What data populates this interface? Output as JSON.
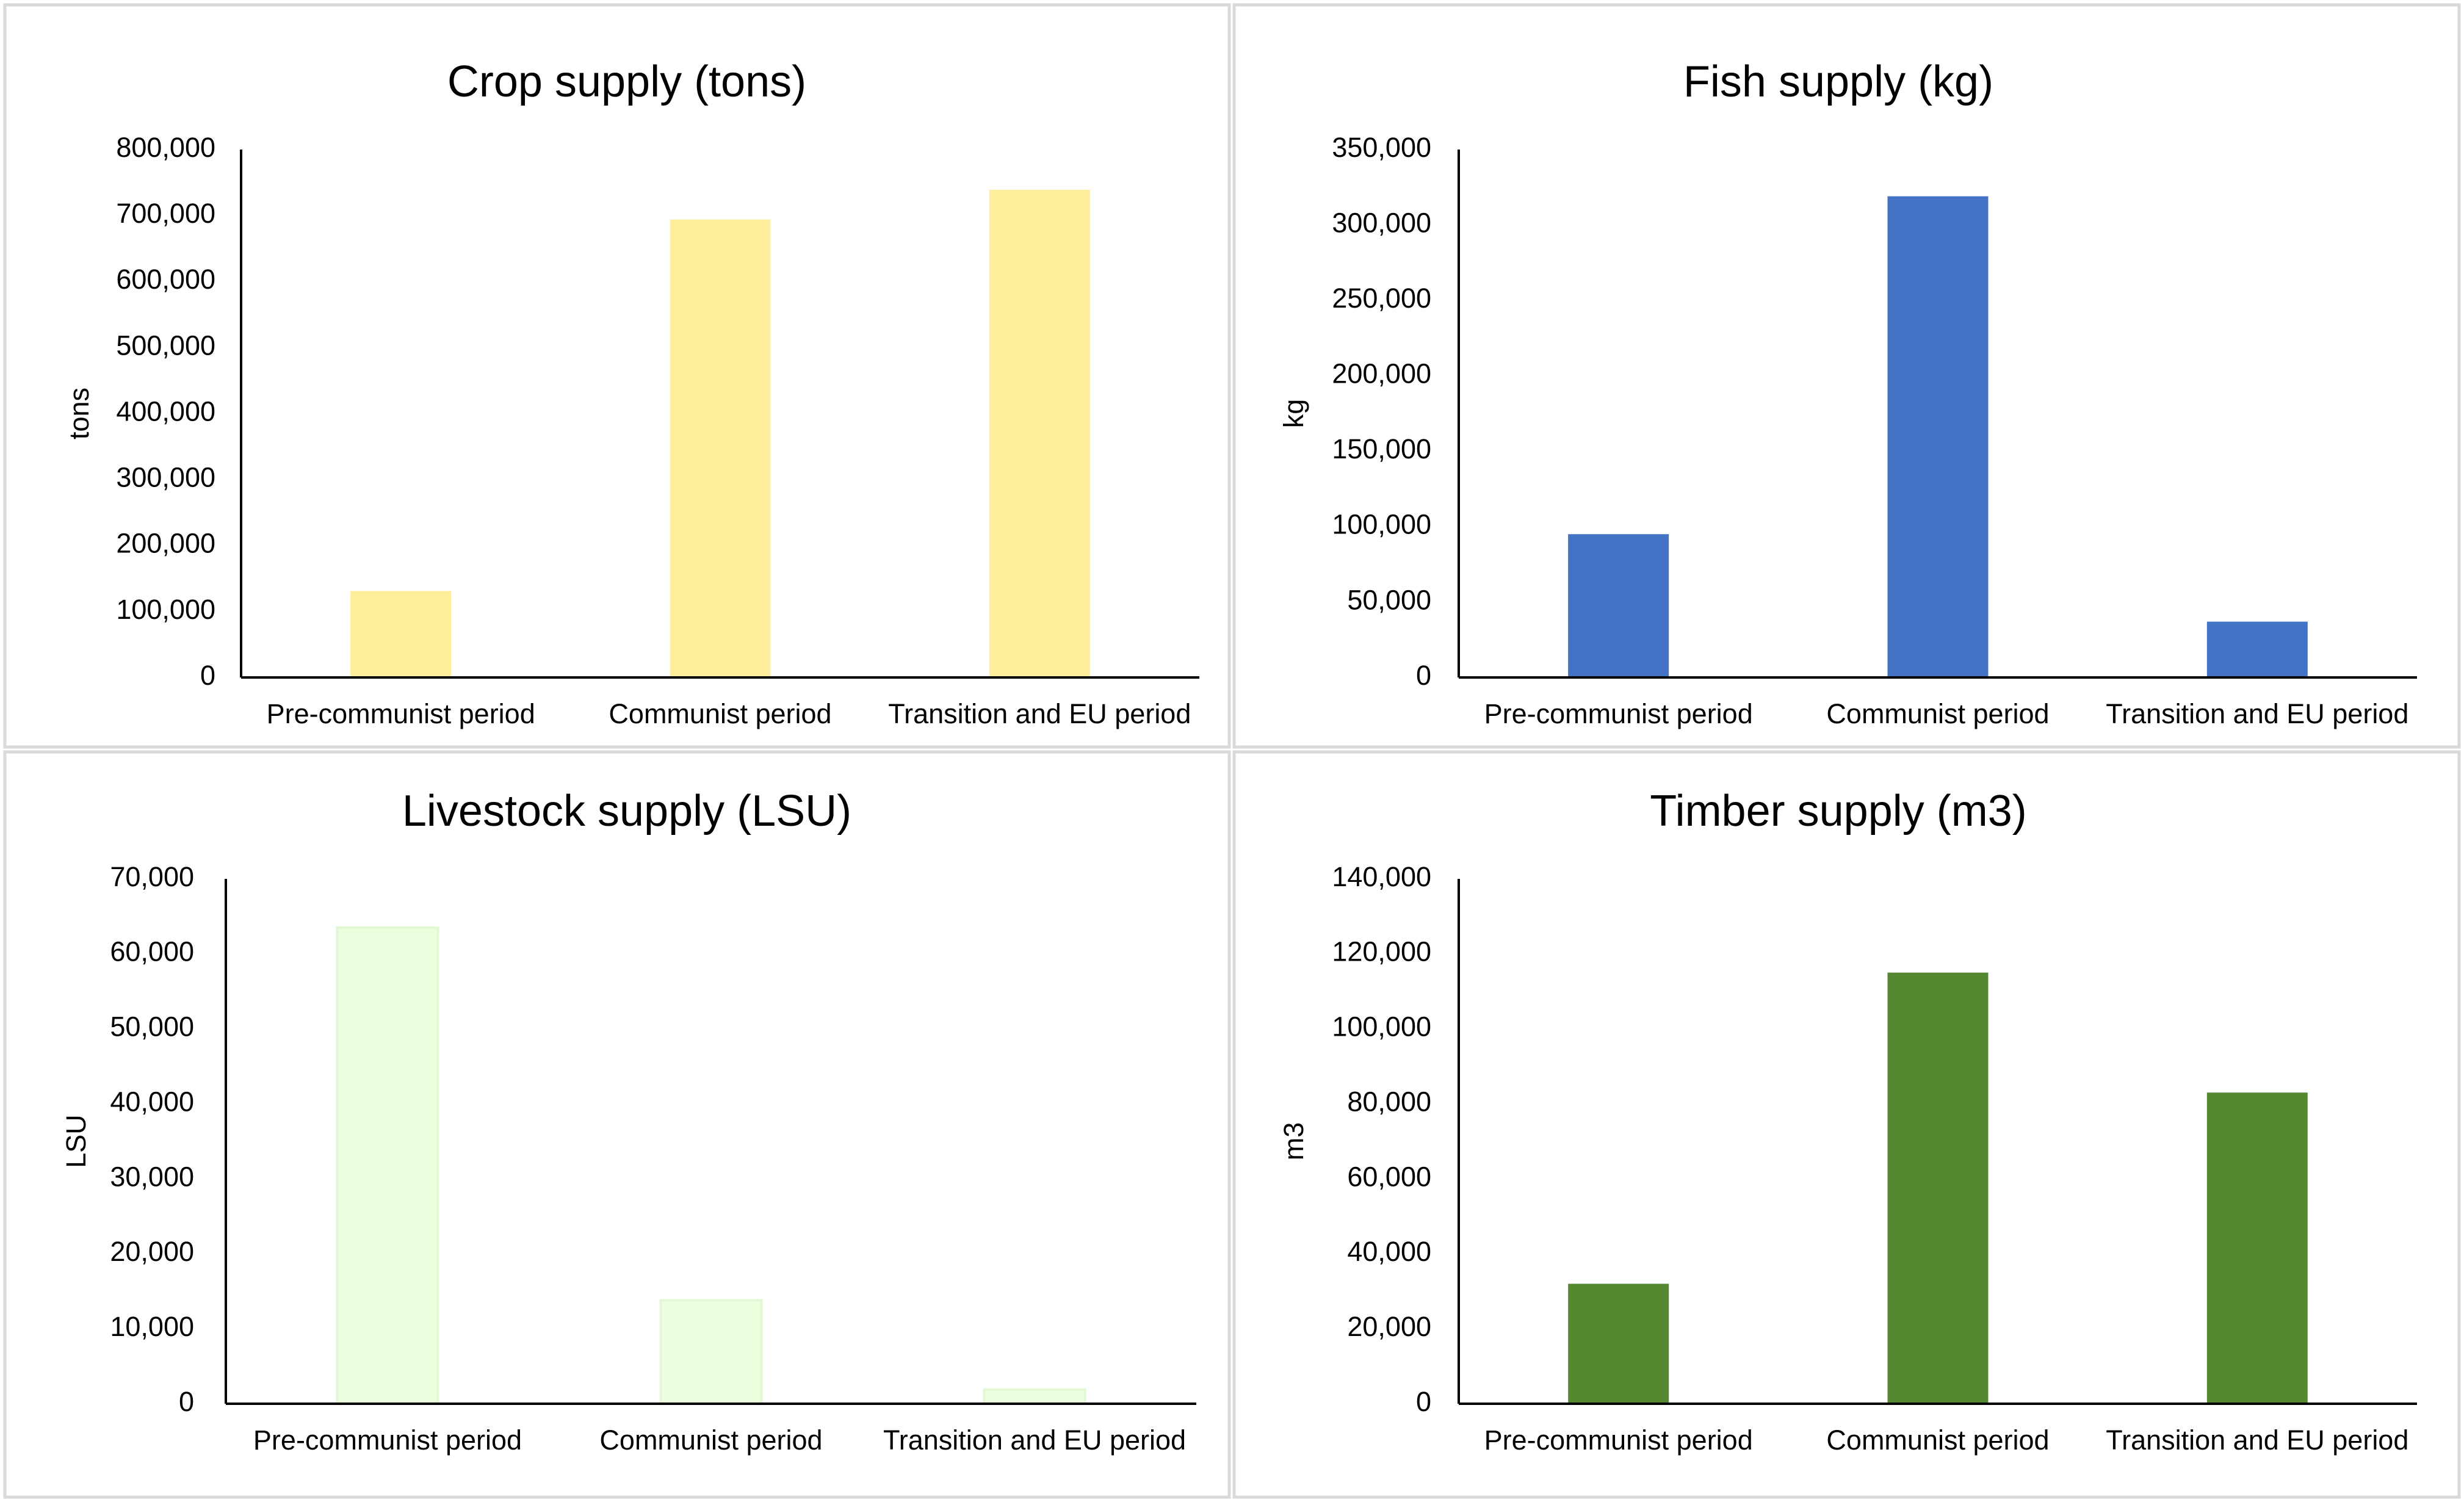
{
  "chart_data": [
    {
      "id": "crop",
      "type": "bar",
      "title": "Crop supply (tons)",
      "xlabel": "",
      "ylabel": "tons",
      "categories": [
        "Pre-communist period",
        "Communist period",
        "Transition and EU period"
      ],
      "values": [
        131000,
        694000,
        739000
      ],
      "ylim": [
        0,
        800000
      ],
      "yticks": [
        0,
        100000,
        200000,
        300000,
        400000,
        500000,
        600000,
        700000,
        800000
      ],
      "ytick_labels": [
        "0",
        "100,000",
        "200,000",
        "300,000",
        "400,000",
        "500,000",
        "600,000",
        "700,000",
        "800,000"
      ],
      "bar_color": "#FEED9A",
      "grid": false,
      "legend": "none"
    },
    {
      "id": "fish",
      "type": "bar",
      "title": "Fish supply (kg)",
      "xlabel": "",
      "ylabel": "kg",
      "categories": [
        "Pre-communist period",
        "Communist period",
        "Transition and EU period"
      ],
      "values": [
        95000,
        319000,
        37000
      ],
      "ylim": [
        0,
        350000
      ],
      "yticks": [
        0,
        50000,
        100000,
        150000,
        200000,
        250000,
        300000,
        350000
      ],
      "ytick_labels": [
        "0",
        "50,000",
        "100,000",
        "150,000",
        "200,000",
        "250,000",
        "300,000",
        "350,000"
      ],
      "bar_color": "#4472C4",
      "grid": false,
      "legend": "none"
    },
    {
      "id": "livestock",
      "type": "bar",
      "title": "Livestock supply (LSU)",
      "xlabel": "",
      "ylabel": "LSU",
      "categories": [
        "Pre-communist period",
        "Communist period",
        "Transition and EU period"
      ],
      "values": [
        63500,
        13800,
        1900
      ],
      "ylim": [
        0,
        70000
      ],
      "yticks": [
        0,
        10000,
        20000,
        30000,
        40000,
        50000,
        60000,
        70000
      ],
      "ytick_labels": [
        "0",
        "10,000",
        "20,000",
        "30,000",
        "40,000",
        "50,000",
        "60,000",
        "70,000"
      ],
      "bar_color": "#EBFFDF",
      "bar_stroke": "#E2F7D4",
      "grid": false,
      "legend": "none"
    },
    {
      "id": "timber",
      "type": "bar",
      "title": "Timber supply (m3)",
      "xlabel": "",
      "ylabel": "m3",
      "categories": [
        "Pre-communist period",
        "Communist period",
        "Transition and EU period"
      ],
      "values": [
        32000,
        115000,
        83000
      ],
      "ylim": [
        0,
        140000
      ],
      "yticks": [
        0,
        20000,
        40000,
        60000,
        80000,
        100000,
        120000,
        140000
      ],
      "ytick_labels": [
        "0",
        "20,000",
        "40,000",
        "60,000",
        "80,000",
        "100,000",
        "120,000",
        "140,000"
      ],
      "bar_color": "#548932",
      "grid": false,
      "legend": "none"
    }
  ]
}
